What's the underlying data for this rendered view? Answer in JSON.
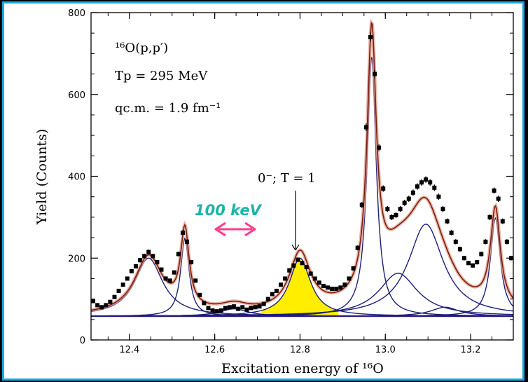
{
  "chart_data": {
    "type": "line",
    "xlabel": "Excitation energy of ¹⁶O",
    "ylabel": "Yield (Counts)",
    "xlim": [
      12.31,
      13.3
    ],
    "ylim": [
      0,
      800
    ],
    "x_ticks": [
      "12.4",
      "12.6",
      "12.8",
      "13.0",
      "13.2"
    ],
    "y_ticks": [
      "0",
      "200",
      "400",
      "600",
      "800"
    ],
    "annotations": {
      "reaction": "¹⁶O(p,p′)",
      "energy": "Tp = 295 MeV",
      "momentum": "qc.m. = 1.9 fm⁻¹",
      "state_label": "0⁻; T = 1",
      "resolution": "100 keV"
    },
    "background_level": 58,
    "peaks": [
      {
        "center": 12.445,
        "height": 142,
        "width": 0.04
      },
      {
        "center": 12.53,
        "height": 190,
        "width": 0.012
      },
      {
        "center": 12.645,
        "height": 18,
        "width": 0.04
      },
      {
        "center": 12.8,
        "height": 142,
        "width": 0.03,
        "highlight": true
      },
      {
        "center": 12.968,
        "height": 635,
        "width": 0.013
      },
      {
        "center": 13.03,
        "height": 105,
        "width": 0.055
      },
      {
        "center": 13.095,
        "height": 225,
        "width": 0.05
      },
      {
        "center": 13.14,
        "height": 22,
        "width": 0.04
      },
      {
        "center": 13.258,
        "height": 240,
        "width": 0.014
      }
    ],
    "data_points": [
      {
        "x": 12.315,
        "y": 95
      },
      {
        "x": 12.325,
        "y": 85
      },
      {
        "x": 12.335,
        "y": 80
      },
      {
        "x": 12.345,
        "y": 85
      },
      {
        "x": 12.355,
        "y": 93
      },
      {
        "x": 12.365,
        "y": 105
      },
      {
        "x": 12.375,
        "y": 120
      },
      {
        "x": 12.385,
        "y": 135
      },
      {
        "x": 12.395,
        "y": 150
      },
      {
        "x": 12.405,
        "y": 168
      },
      {
        "x": 12.415,
        "y": 180
      },
      {
        "x": 12.425,
        "y": 195
      },
      {
        "x": 12.435,
        "y": 205
      },
      {
        "x": 12.445,
        "y": 215
      },
      {
        "x": 12.455,
        "y": 205
      },
      {
        "x": 12.465,
        "y": 190
      },
      {
        "x": 12.475,
        "y": 172
      },
      {
        "x": 12.485,
        "y": 150
      },
      {
        "x": 12.495,
        "y": 145
      },
      {
        "x": 12.505,
        "y": 165
      },
      {
        "x": 12.515,
        "y": 210
      },
      {
        "x": 12.525,
        "y": 262
      },
      {
        "x": 12.535,
        "y": 240
      },
      {
        "x": 12.545,
        "y": 190
      },
      {
        "x": 12.555,
        "y": 145
      },
      {
        "x": 12.565,
        "y": 110
      },
      {
        "x": 12.575,
        "y": 90
      },
      {
        "x": 12.585,
        "y": 78
      },
      {
        "x": 12.595,
        "y": 72
      },
      {
        "x": 12.605,
        "y": 70
      },
      {
        "x": 12.615,
        "y": 72
      },
      {
        "x": 12.625,
        "y": 78
      },
      {
        "x": 12.635,
        "y": 80
      },
      {
        "x": 12.645,
        "y": 82
      },
      {
        "x": 12.655,
        "y": 76
      },
      {
        "x": 12.665,
        "y": 80
      },
      {
        "x": 12.675,
        "y": 74
      },
      {
        "x": 12.685,
        "y": 78
      },
      {
        "x": 12.695,
        "y": 80
      },
      {
        "x": 12.705,
        "y": 82
      },
      {
        "x": 12.715,
        "y": 88
      },
      {
        "x": 12.725,
        "y": 100
      },
      {
        "x": 12.735,
        "y": 112
      },
      {
        "x": 12.745,
        "y": 120
      },
      {
        "x": 12.755,
        "y": 135
      },
      {
        "x": 12.765,
        "y": 150
      },
      {
        "x": 12.775,
        "y": 170
      },
      {
        "x": 12.785,
        "y": 182
      },
      {
        "x": 12.795,
        "y": 196
      },
      {
        "x": 12.805,
        "y": 188
      },
      {
        "x": 12.815,
        "y": 178
      },
      {
        "x": 12.825,
        "y": 162
      },
      {
        "x": 12.835,
        "y": 150
      },
      {
        "x": 12.845,
        "y": 140
      },
      {
        "x": 12.855,
        "y": 132
      },
      {
        "x": 12.865,
        "y": 128
      },
      {
        "x": 12.875,
        "y": 125
      },
      {
        "x": 12.885,
        "y": 125
      },
      {
        "x": 12.895,
        "y": 128
      },
      {
        "x": 12.905,
        "y": 135
      },
      {
        "x": 12.915,
        "y": 150
      },
      {
        "x": 12.925,
        "y": 175
      },
      {
        "x": 12.935,
        "y": 225
      },
      {
        "x": 12.945,
        "y": 330
      },
      {
        "x": 12.955,
        "y": 520
      },
      {
        "x": 12.965,
        "y": 740
      },
      {
        "x": 12.975,
        "y": 650
      },
      {
        "x": 12.985,
        "y": 470
      },
      {
        "x": 12.995,
        "y": 370
      },
      {
        "x": 13.005,
        "y": 320
      },
      {
        "x": 13.015,
        "y": 300
      },
      {
        "x": 13.025,
        "y": 305
      },
      {
        "x": 13.035,
        "y": 320
      },
      {
        "x": 13.045,
        "y": 335
      },
      {
        "x": 13.055,
        "y": 345
      },
      {
        "x": 13.065,
        "y": 360
      },
      {
        "x": 13.075,
        "y": 375
      },
      {
        "x": 13.085,
        "y": 385
      },
      {
        "x": 13.095,
        "y": 392
      },
      {
        "x": 13.105,
        "y": 385
      },
      {
        "x": 13.115,
        "y": 372
      },
      {
        "x": 13.125,
        "y": 350
      },
      {
        "x": 13.135,
        "y": 320
      },
      {
        "x": 13.145,
        "y": 290
      },
      {
        "x": 13.155,
        "y": 262
      },
      {
        "x": 13.165,
        "y": 240
      },
      {
        "x": 13.175,
        "y": 222
      },
      {
        "x": 13.185,
        "y": 200
      },
      {
        "x": 13.195,
        "y": 188
      },
      {
        "x": 13.205,
        "y": 182
      },
      {
        "x": 13.215,
        "y": 190
      },
      {
        "x": 13.225,
        "y": 210
      },
      {
        "x": 13.235,
        "y": 240
      },
      {
        "x": 13.245,
        "y": 300
      },
      {
        "x": 13.255,
        "y": 365
      },
      {
        "x": 13.265,
        "y": 345
      },
      {
        "x": 13.275,
        "y": 290
      },
      {
        "x": 13.285,
        "y": 240
      },
      {
        "x": 13.295,
        "y": 200
      }
    ],
    "colors": {
      "frame": "#1aa7e8",
      "total_fit": "#7a1e10",
      "total_fit_glow": "#e39a86",
      "component": "#1c1f7a",
      "background": "#a01ca0",
      "highlight_fill": "#ffee00",
      "arrow": "#ff3d8b",
      "note": "#1db3a6",
      "points": "#000000"
    }
  }
}
